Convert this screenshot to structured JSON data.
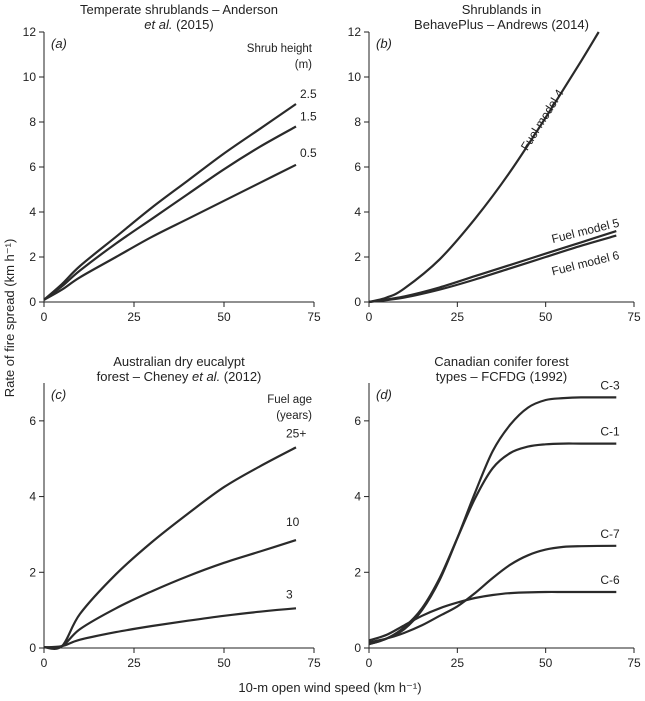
{
  "figure": {
    "ylabel": "Rate of fire spread (km h⁻¹)",
    "xlabel": "10-m open wind speed (km h⁻¹)"
  },
  "chart_data": [
    {
      "id": "a",
      "type": "line",
      "panel_label": "(a)",
      "title_lines": [
        "Temperate shrublands – Anderson",
        "et al. (2015)"
      ],
      "legend_title": [
        "Shrub height",
        "(m)"
      ],
      "xlim": [
        0,
        75
      ],
      "ylim": [
        0,
        12
      ],
      "xticks": [
        0,
        25,
        50,
        75
      ],
      "yticks": [
        0,
        2,
        4,
        6,
        8,
        10,
        12
      ],
      "series": [
        {
          "name": "2.5",
          "label_pos": "end",
          "x": [
            0,
            5,
            10,
            20,
            30,
            40,
            50,
            60,
            70
          ],
          "y": [
            0.1,
            0.8,
            1.6,
            2.9,
            4.2,
            5.4,
            6.6,
            7.7,
            8.8
          ]
        },
        {
          "name": "1.5",
          "label_pos": "end",
          "x": [
            0,
            5,
            10,
            20,
            30,
            40,
            50,
            60,
            70
          ],
          "y": [
            0.1,
            0.7,
            1.4,
            2.6,
            3.7,
            4.8,
            5.9,
            6.9,
            7.8
          ]
        },
        {
          "name": "0.5",
          "label_pos": "end",
          "x": [
            0,
            5,
            10,
            20,
            30,
            40,
            50,
            60,
            70
          ],
          "y": [
            0.1,
            0.55,
            1.1,
            2.0,
            2.9,
            3.7,
            4.5,
            5.3,
            6.1
          ]
        }
      ]
    },
    {
      "id": "b",
      "type": "line",
      "panel_label": "(b)",
      "title_lines": [
        "Shrublands in",
        "BehavePlus – Andrews (2014)"
      ],
      "legend_title": [],
      "xlim": [
        0,
        75
      ],
      "ylim": [
        0,
        12
      ],
      "xticks": [
        0,
        25,
        50,
        75
      ],
      "yticks": [
        0,
        2,
        4,
        6,
        8,
        10,
        12
      ],
      "series": [
        {
          "name": "Fuel model 4",
          "label_pos": "along",
          "x": [
            0,
            5,
            10,
            20,
            30,
            40,
            50,
            60,
            65
          ],
          "y": [
            0,
            0.2,
            0.6,
            1.9,
            3.7,
            5.8,
            8.2,
            10.7,
            12.0
          ]
        },
        {
          "name": "Fuel model 5",
          "label_pos": "above",
          "x": [
            0,
            10,
            20,
            30,
            40,
            50,
            60,
            70
          ],
          "y": [
            0,
            0.25,
            0.65,
            1.15,
            1.65,
            2.15,
            2.65,
            3.15
          ]
        },
        {
          "name": "Fuel model 6",
          "label_pos": "below",
          "x": [
            0,
            10,
            20,
            30,
            40,
            50,
            60,
            70
          ],
          "y": [
            0,
            0.2,
            0.55,
            1.0,
            1.5,
            2.0,
            2.5,
            2.95
          ]
        }
      ]
    },
    {
      "id": "c",
      "type": "line",
      "panel_label": "(c)",
      "title_lines": [
        "Australian dry eucalypt",
        "forest – Cheney et al. (2012)"
      ],
      "legend_title": [
        "Fuel age",
        "(years)"
      ],
      "xlim": [
        0,
        75
      ],
      "ylim": [
        0,
        7
      ],
      "xticks": [
        0,
        25,
        50,
        75
      ],
      "yticks": [
        0,
        2,
        4,
        6
      ],
      "series": [
        {
          "name": "25+",
          "label_pos": "end",
          "x": [
            0,
            5,
            10,
            20,
            30,
            40,
            50,
            60,
            70
          ],
          "y": [
            0.02,
            0.05,
            0.9,
            1.95,
            2.8,
            3.55,
            4.25,
            4.8,
            5.3
          ]
        },
        {
          "name": "10",
          "label_pos": "end",
          "x": [
            0,
            5,
            10,
            20,
            30,
            40,
            50,
            60,
            70
          ],
          "y": [
            0.02,
            0.05,
            0.5,
            1.05,
            1.5,
            1.9,
            2.25,
            2.55,
            2.85
          ]
        },
        {
          "name": "3",
          "label_pos": "end",
          "x": [
            0,
            5,
            10,
            20,
            30,
            40,
            50,
            60,
            70
          ],
          "y": [
            0.02,
            0.05,
            0.22,
            0.42,
            0.58,
            0.72,
            0.85,
            0.96,
            1.05
          ]
        }
      ]
    },
    {
      "id": "d",
      "type": "line",
      "panel_label": "(d)",
      "title_lines": [
        "Canadian conifer forest",
        "types – FCFDG (1992)"
      ],
      "legend_title": [],
      "xlim": [
        0,
        75
      ],
      "ylim": [
        0,
        7
      ],
      "xticks": [
        0,
        25,
        50,
        75
      ],
      "yticks": [
        0,
        2,
        4,
        6
      ],
      "series": [
        {
          "name": "C-3",
          "label_pos": "end",
          "x": [
            0,
            5,
            10,
            15,
            20,
            25,
            30,
            35,
            40,
            45,
            50,
            55,
            60,
            70
          ],
          "y": [
            0.1,
            0.25,
            0.5,
            1.0,
            1.8,
            2.9,
            4.1,
            5.2,
            5.9,
            6.35,
            6.55,
            6.6,
            6.62,
            6.62
          ]
        },
        {
          "name": "C-1",
          "label_pos": "end",
          "x": [
            0,
            5,
            10,
            15,
            20,
            25,
            30,
            35,
            40,
            45,
            50,
            55,
            60,
            70
          ],
          "y": [
            0.1,
            0.25,
            0.55,
            1.05,
            1.85,
            2.9,
            3.95,
            4.75,
            5.15,
            5.32,
            5.38,
            5.4,
            5.4,
            5.4
          ]
        },
        {
          "name": "C-7",
          "label_pos": "end",
          "x": [
            0,
            5,
            10,
            15,
            20,
            25,
            30,
            35,
            40,
            45,
            50,
            55,
            60,
            70
          ],
          "y": [
            0.15,
            0.25,
            0.4,
            0.6,
            0.85,
            1.1,
            1.45,
            1.85,
            2.2,
            2.45,
            2.6,
            2.67,
            2.69,
            2.7
          ]
        },
        {
          "name": "C-6",
          "label_pos": "end",
          "x": [
            0,
            5,
            10,
            15,
            20,
            25,
            30,
            35,
            40,
            45,
            50,
            55,
            60,
            70
          ],
          "y": [
            0.2,
            0.35,
            0.6,
            0.85,
            1.05,
            1.2,
            1.32,
            1.4,
            1.45,
            1.47,
            1.48,
            1.48,
            1.48,
            1.48
          ]
        }
      ]
    }
  ]
}
